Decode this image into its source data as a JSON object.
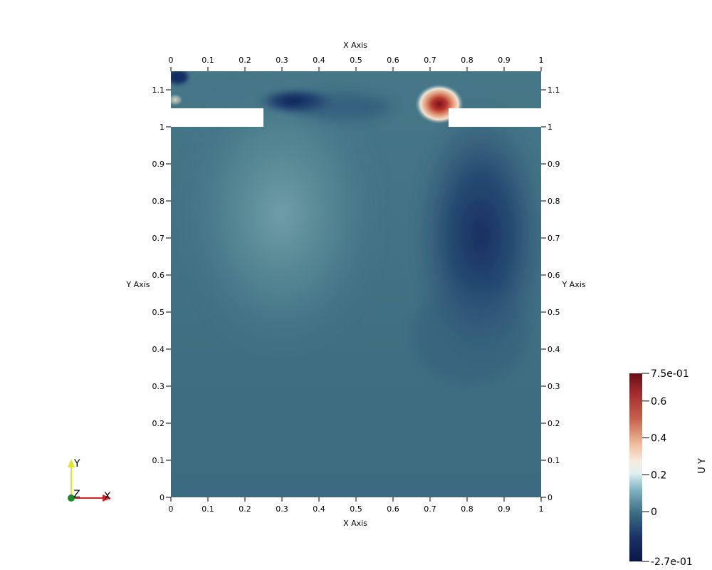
{
  "chart_data": {
    "type": "heatmap",
    "title": "",
    "xlabel": "X Axis",
    "ylabel": "Y Axis",
    "xlim": [
      0,
      1
    ],
    "ylim": [
      0,
      1.15
    ],
    "x_ticks": [
      0,
      0.1,
      0.2,
      0.3,
      0.4,
      0.5,
      0.6,
      0.7,
      0.8,
      0.9,
      1
    ],
    "x_tick_labels": [
      "0",
      "0.1",
      "0.2",
      "0.3",
      "0.4",
      "0.5",
      "0.6",
      "0.7",
      "0.8",
      "0.9",
      "1"
    ],
    "y_ticks": [
      0,
      0.1,
      0.2,
      0.3,
      0.4,
      0.5,
      0.6,
      0.7,
      0.8,
      0.9,
      1,
      1.1
    ],
    "y_tick_labels": [
      "0",
      "0.1",
      "0.2",
      "0.3",
      "0.4",
      "0.5",
      "0.6",
      "0.7",
      "0.8",
      "0.9",
      "1",
      "1.1"
    ],
    "field": "U Y",
    "color_range": [
      -0.27,
      0.75
    ],
    "colorbar_labels": [
      "7.5e-01",
      "0.6",
      "0.4",
      "0.2",
      "0",
      "-2.7e-01"
    ],
    "colorbar_values": [
      0.75,
      0.6,
      0.4,
      0.2,
      0,
      -0.27
    ],
    "colormap": "Blue-White-Red diverging",
    "colors": {
      "low": "#0a1f5c",
      "mid_low": "#3d6e86",
      "mid": "#f4f2ee",
      "high": "#6d1020"
    },
    "obstacles": [
      {
        "x": [
          0,
          0.25
        ],
        "y": [
          1.0,
          1.05
        ]
      },
      {
        "x": [
          0.75,
          1.0
        ],
        "y": [
          1.0,
          1.05
        ]
      }
    ],
    "field_features": [
      {
        "kind": "background",
        "value": -0.05
      },
      {
        "kind": "max",
        "x": 0.735,
        "y": 1.065,
        "value": 0.75
      },
      {
        "kind": "min",
        "x": 0.32,
        "y": 1.08,
        "value": -0.27
      },
      {
        "kind": "min",
        "x": 0.85,
        "y": 0.75,
        "value": -0.24
      },
      {
        "kind": "plume",
        "x": 0.3,
        "y": 0.75,
        "value": 0.07
      }
    ],
    "orientation_axes": {
      "labels": [
        "Y",
        "Z",
        "X"
      ]
    }
  }
}
